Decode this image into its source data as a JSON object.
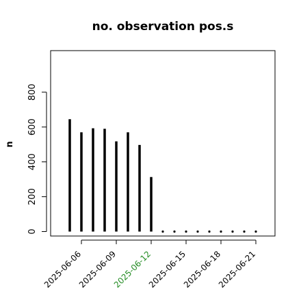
{
  "chart_data": {
    "type": "bar",
    "title": "no. observation pos.s",
    "xlabel": "",
    "ylabel": "n",
    "ylim": [
      0,
      1000
    ],
    "yticks": [
      0,
      200,
      400,
      600,
      800
    ],
    "x": [
      "2025-06-05",
      "2025-06-06",
      "2025-06-07",
      "2025-06-08",
      "2025-06-09",
      "2025-06-10",
      "2025-06-11",
      "2025-06-12",
      "2025-06-13",
      "2025-06-14",
      "2025-06-15",
      "2025-06-16",
      "2025-06-17",
      "2025-06-18",
      "2025-06-19",
      "2025-06-20",
      "2025-06-21"
    ],
    "values": [
      645,
      570,
      593,
      590,
      518,
      570,
      497,
      313,
      0,
      0,
      0,
      0,
      0,
      0,
      0,
      0,
      0
    ],
    "xtick_labels": [
      {
        "date": "2025-06-06",
        "label": "2025-06-06",
        "color": "#000000"
      },
      {
        "date": "2025-06-09",
        "label": "2025-06-09",
        "color": "#000000"
      },
      {
        "date": "2025-06-12",
        "label": "2025-06-12",
        "color": "#228B22"
      },
      {
        "date": "2025-06-15",
        "label": "2025-06-15",
        "color": "#000000"
      },
      {
        "date": "2025-06-18",
        "label": "2025-06-18",
        "color": "#000000"
      },
      {
        "date": "2025-06-21",
        "label": "2025-06-21",
        "color": "#000000"
      }
    ],
    "colors": {
      "bars": "#000000",
      "highlight_tick": "#228B22"
    },
    "grid": false,
    "legend": "none"
  }
}
